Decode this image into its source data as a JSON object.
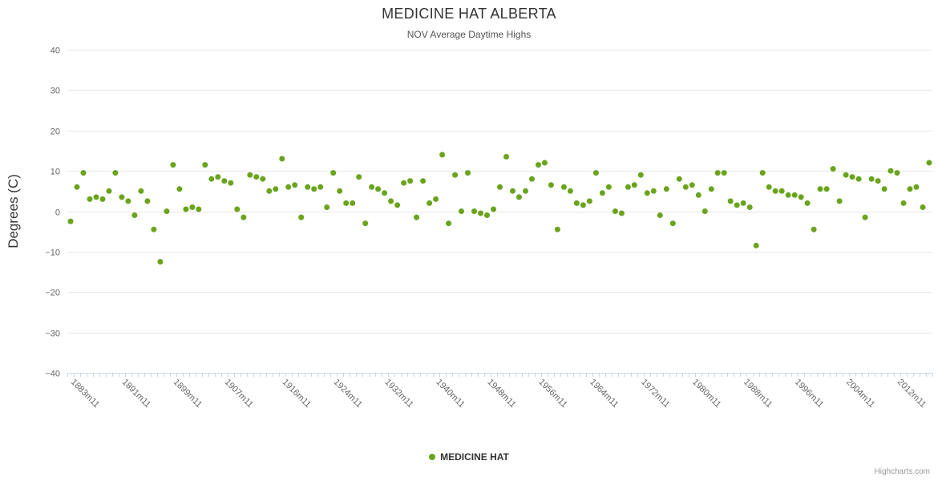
{
  "title": "MEDICINE HAT ALBERTA",
  "subtitle": "NOV Average Daytime Highs",
  "credits_label": "Highcharts.com",
  "legend": {
    "label": "MEDICINE HAT",
    "marker_color": "#69a41c"
  },
  "chart_data": {
    "type": "scatter",
    "title": "MEDICINE HAT ALBERTA",
    "subtitle": "NOV Average Daytime Highs",
    "xlabel": "",
    "ylabel": "Degrees (C)",
    "ylim": [
      -40,
      40
    ],
    "yticks": [
      40,
      30,
      20,
      10,
      0,
      -10,
      -20,
      -30,
      -40
    ],
    "ytick_labels": [
      "40",
      "30",
      "20",
      "10",
      "0",
      "−10",
      "−20",
      "−30",
      "−40"
    ],
    "grid": true,
    "legend_position": "bottom-center",
    "x_start_year": 1883,
    "x_suffix": "m11",
    "x_labels_shown": [
      "1883m11",
      "1891m11",
      "1899m11",
      "1907m11",
      "1916m11",
      "1924m11",
      "1932m11",
      "1940m11",
      "1948m11",
      "1956m11",
      "1964m11",
      "1972m11",
      "1980m11",
      "1988m11",
      "1996m11",
      "2004m11",
      "2012m11"
    ],
    "series": [
      {
        "name": "MEDICINE HAT",
        "color": "#69a41c",
        "values": [
          -2.5,
          6,
          9.5,
          3,
          3.5,
          3,
          5,
          9.5,
          3.5,
          2.5,
          -1,
          5,
          2.5,
          -4.5,
          -12.5,
          0,
          11.5,
          5.5,
          0.5,
          1,
          0.5,
          11.5,
          8,
          8.5,
          7.5,
          7,
          0.5,
          -1.5,
          9,
          8.5,
          8,
          5,
          5.5,
          13,
          6,
          6.5,
          -1.5,
          6,
          5.5,
          6,
          1,
          9.5,
          5,
          2,
          2,
          8.5,
          -3,
          6,
          5.5,
          4.5,
          2.5,
          1.5,
          7,
          7.5,
          -1.5,
          7.5,
          2,
          3,
          14,
          -3,
          9,
          0,
          9.5,
          0,
          -0.5,
          -1,
          0.5,
          6,
          13.5,
          5,
          3.5,
          5,
          8,
          11.5,
          12,
          6.5,
          -4.5,
          6,
          5,
          2,
          1.5,
          2.5,
          9.5,
          4.5,
          6,
          0,
          -0.5,
          6,
          6.5,
          9,
          4.5,
          5,
          -1,
          5.5,
          -3,
          8,
          6,
          6.5,
          4,
          0,
          5.5,
          9.5,
          9.5,
          2.5,
          1.5,
          2,
          1,
          -8.5,
          9.5,
          6,
          5,
          5,
          4,
          4,
          3.5,
          2,
          -4.5,
          5.5,
          5.5,
          10.5,
          2.5,
          9,
          8.5,
          8,
          -1.5,
          8,
          7.5,
          5.5,
          10,
          9.5,
          2,
          5.5,
          6,
          1,
          12
        ]
      }
    ]
  }
}
